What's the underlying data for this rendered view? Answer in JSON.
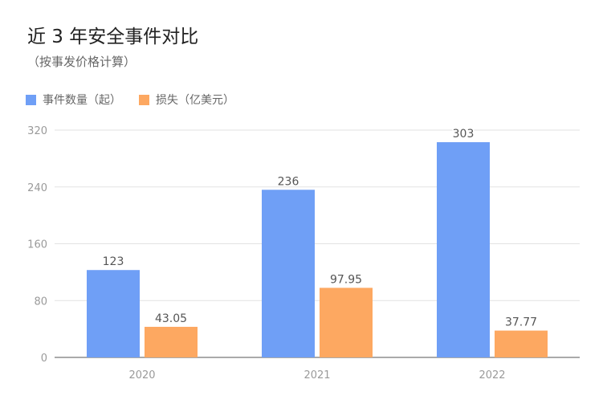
{
  "chart_data": {
    "type": "bar",
    "title": "近 3 年安全事件对比",
    "subtitle": "（按事发价格计算）",
    "categories": [
      "2020",
      "2021",
      "2022"
    ],
    "series": [
      {
        "name": "事件数量（起）",
        "values": [
          123,
          236,
          303
        ],
        "color": "#6f9ff6"
      },
      {
        "name": "损失（亿美元）",
        "values": [
          43.05,
          97.95,
          37.77
        ],
        "color": "#fda861"
      }
    ],
    "value_labels": [
      [
        "123",
        "236",
        "303"
      ],
      [
        "43.05",
        "97.95",
        "37.77"
      ]
    ],
    "y_ticks": [
      "0",
      "80",
      "160",
      "240",
      "320"
    ],
    "ylim": [
      0,
      320
    ],
    "xlabel": "",
    "ylabel": "",
    "grid": true,
    "legend_position": "top-left"
  }
}
